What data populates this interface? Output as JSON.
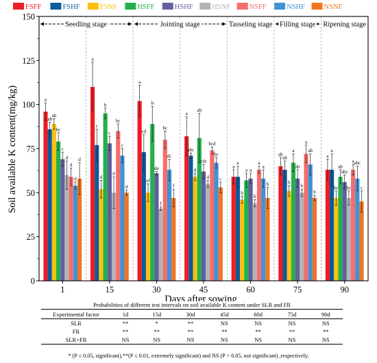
{
  "chart_data": {
    "type": "bar",
    "xlabel": "Days after sowing",
    "ylabel": "Soil available K content(mg/kg)",
    "ylim": [
      0,
      150
    ],
    "yticks": [
      0,
      25,
      50,
      75,
      100,
      125,
      150
    ],
    "grid": false,
    "legend_position": "top",
    "categories": [
      "1",
      "15",
      "30",
      "45",
      "60",
      "75",
      "90"
    ],
    "stages": [
      {
        "label": "Seedling stage",
        "from": 0,
        "to": 1
      },
      {
        "label": "Jointing stage",
        "from": 2,
        "to": 3
      },
      {
        "label": "Tasseling stage",
        "from": 4,
        "to": 4
      },
      {
        "label": "Filling stage",
        "from": 5,
        "to": 5
      },
      {
        "label": "Ripening stage",
        "from": 6,
        "to": 6
      }
    ],
    "series": [
      {
        "name": "FSFF",
        "color": "#ee1c25",
        "values": [
          96,
          110,
          102,
          82,
          59,
          65,
          63
        ],
        "errors": [
          5,
          14,
          9,
          11,
          4,
          5,
          6
        ],
        "letters": [
          "a",
          "a",
          "a",
          "a",
          "a",
          "ab",
          "a"
        ]
      },
      {
        "name": "FSHF",
        "color": "#0d5a9c",
        "values": [
          86,
          77,
          73,
          71,
          59,
          63,
          63
        ],
        "errors": [
          4,
          9,
          10,
          1.5,
          6,
          5,
          9
        ],
        "letters": [
          "ab",
          "c",
          "cd",
          "abc",
          "a",
          "ab",
          "a"
        ]
      },
      {
        "name": "FSNF",
        "color": "#fdc00f",
        "values": [
          89,
          52,
          50,
          59,
          46,
          51,
          47
        ],
        "errors": [
          3,
          5,
          5,
          2,
          2,
          3,
          4
        ],
        "letters": [
          "ab",
          "d",
          "ef",
          "d",
          "b",
          "b",
          "bc"
        ]
      },
      {
        "name": "HSFF",
        "color": "#22b14c",
        "values": [
          79,
          95,
          89,
          81,
          57,
          67,
          59
        ],
        "errors": [
          5,
          3,
          10,
          14,
          4,
          5,
          4
        ],
        "letters": [
          "bc",
          "b",
          "b",
          "ab",
          "a",
          "a",
          "ab"
        ]
      },
      {
        "name": "HSHF",
        "color": "#625f9f",
        "values": [
          69,
          78,
          61,
          62,
          58,
          58,
          56
        ],
        "errors": [
          4,
          4,
          1,
          4,
          3,
          5,
          4
        ],
        "letters": [
          "c",
          "c",
          "de",
          "cdc",
          "a",
          "ab",
          "abc"
        ]
      },
      {
        "name": "HSNF",
        "color": "#b4b4b4",
        "values": [
          60,
          50,
          41,
          55,
          44,
          50,
          47
        ],
        "errors": [
          8,
          9,
          1,
          2,
          2,
          2,
          4
        ],
        "letters": [
          "d",
          "d",
          "f",
          "d",
          "b",
          "b",
          "bc"
        ]
      },
      {
        "name": "NSFF",
        "color": "#f56d6d",
        "values": [
          59,
          85,
          80,
          74,
          63,
          72,
          63
        ],
        "errors": [
          5,
          4,
          5,
          2,
          2,
          5,
          3
        ],
        "letters": [
          "d",
          "bc",
          "bc",
          "bcd",
          "a",
          "a",
          "a"
        ]
      },
      {
        "name": "NSHF",
        "color": "#3f93d5",
        "values": [
          54,
          71,
          63,
          67,
          58,
          66,
          58
        ],
        "errors": [
          2,
          4,
          6,
          3,
          5,
          6,
          7
        ],
        "letters": [
          "d",
          "c",
          "dc",
          "bc",
          "a",
          "ab",
          "abc"
        ]
      },
      {
        "name": "NSNF",
        "color": "#f07522",
        "values": [
          58,
          50,
          47,
          53,
          47,
          47,
          45
        ],
        "errors": [
          9,
          1.5,
          5,
          3,
          6,
          1.5,
          6
        ],
        "letters": [
          "d",
          "d",
          "f",
          "c",
          "b",
          "b",
          "c"
        ]
      }
    ]
  },
  "table": {
    "caption": "Probabilities of different test intervals on soil available K content under SLR and FR",
    "header": [
      "Experimental factor",
      "1d",
      "15d",
      "30d",
      "45d",
      "60d",
      "75d",
      "90d"
    ],
    "rows": [
      [
        "SLR",
        "**",
        "*",
        "**",
        "NS",
        "NS",
        "NS",
        "NS"
      ],
      [
        "FR",
        "**",
        "**",
        "**",
        "**",
        "**",
        "**",
        "**"
      ],
      [
        "SLR×FR",
        "NS",
        "NS",
        "NS",
        "NS",
        "NS",
        "NS",
        "NS"
      ]
    ],
    "footnote": "* (P ≤ 0.05, significant),**(P ≤ 0.01, extremely significant) and NS (P > 0.05, not significant) ,respectively."
  }
}
